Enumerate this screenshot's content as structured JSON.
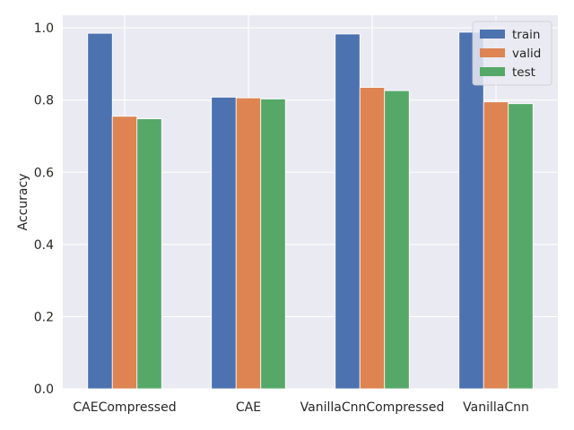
{
  "chart_data": {
    "type": "bar",
    "title": "",
    "xlabel": "",
    "ylabel": "Accuracy",
    "categories": [
      "CAECompressed",
      "CAE",
      "VanillaCnnCompressed",
      "VanillaCnn"
    ],
    "series": [
      {
        "name": "train",
        "color": "#4c72b0",
        "values": [
          0.985,
          0.808,
          0.983,
          0.988
        ]
      },
      {
        "name": "valid",
        "color": "#dd8452",
        "values": [
          0.755,
          0.806,
          0.835,
          0.795
        ]
      },
      {
        "name": "test",
        "color": "#55a868",
        "values": [
          0.748,
          0.803,
          0.826,
          0.79
        ]
      }
    ],
    "ylim": [
      0,
      1.035
    ],
    "yticks": [
      0.0,
      0.2,
      0.4,
      0.6,
      0.8,
      1.0
    ],
    "ytick_labels": [
      "0.0",
      "0.2",
      "0.4",
      "0.6",
      "0.8",
      "1.0"
    ],
    "grid": true,
    "legend_position": "top-right",
    "style": {
      "plot_background": "#eaeaf2",
      "grid_color": "#ffffff",
      "text_color": "#262626"
    }
  }
}
